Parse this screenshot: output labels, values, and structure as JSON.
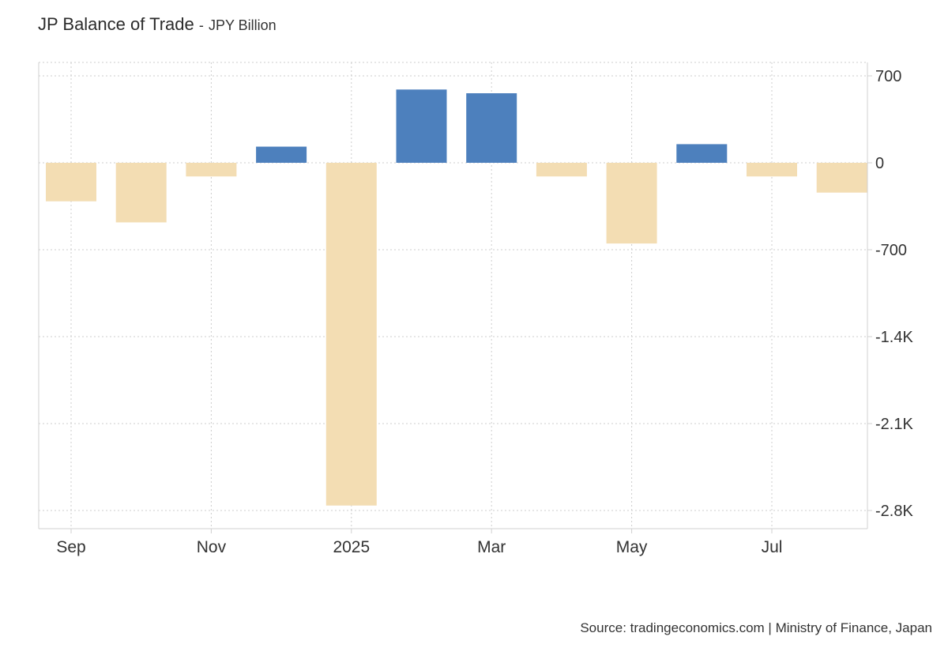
{
  "title": "JP Balance of Trade",
  "title_separator": "-",
  "unit": "JPY Billion",
  "source": "Source: tradingeconomics.com | Ministry of Finance, Japan",
  "colors": {
    "positive": "#4d80bd",
    "negative": "#f3ddb3",
    "grid": "#cccccc",
    "axis": "#d0d0d0"
  },
  "chart_data": {
    "type": "bar",
    "title": "JP Balance of Trade",
    "ylabel": "JPY Billion",
    "categories": [
      "2024-09",
      "2024-10",
      "2024-11",
      "2024-12",
      "2025-01",
      "2025-02",
      "2025-03",
      "2025-04",
      "2025-05",
      "2025-06",
      "2025-07",
      "2025-08"
    ],
    "values": [
      -310,
      -480,
      -110,
      130,
      -2760,
      590,
      560,
      -110,
      -650,
      150,
      -110,
      -240
    ],
    "ylim": [
      -3000,
      800
    ],
    "yticks": [
      700,
      0,
      -700,
      -1400,
      -2100,
      -2800
    ],
    "ytick_labels": [
      "700",
      "0",
      "-700",
      "-1.4K",
      "-2.1K",
      "-2.8K"
    ],
    "xticks": [
      {
        "index": 0,
        "label": "Sep"
      },
      {
        "index": 2,
        "label": "Nov"
      },
      {
        "index": 4,
        "label": "2025"
      },
      {
        "index": 6,
        "label": "Mar"
      },
      {
        "index": 8,
        "label": "May"
      },
      {
        "index": 10,
        "label": "Jul"
      }
    ],
    "grid": true
  }
}
